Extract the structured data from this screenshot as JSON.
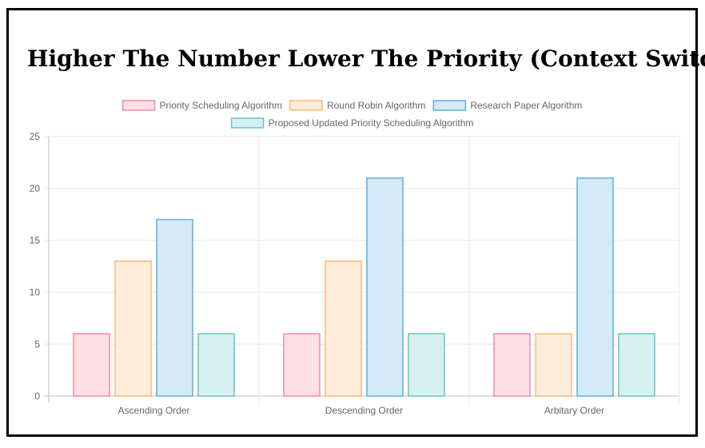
{
  "page": {
    "title": "Higher The Number Lower The Priority (Context Switch)"
  },
  "chart_data": {
    "type": "bar",
    "title": "Higher The Number Lower The Priority (Context Switch)",
    "categories": [
      "Ascending Order",
      "Descending Order",
      "Arbitary Order"
    ],
    "series": [
      {
        "name": "Priority Scheduling Algorithm",
        "values": [
          6,
          6,
          6
        ],
        "fill": "#ffdfe6",
        "stroke": "#f08aa1"
      },
      {
        "name": "Round Robin Algorithm",
        "values": [
          13,
          13,
          6
        ],
        "fill": "#ffecd9",
        "stroke": "#f6bb7b"
      },
      {
        "name": "Research Paper Algorithm",
        "values": [
          17,
          21,
          21
        ],
        "fill": "#d5eaf8",
        "stroke": "#5eaedc"
      },
      {
        "name": "Proposed Updated Priority Scheduling Algorithm",
        "values": [
          6,
          6,
          6
        ],
        "fill": "#d6f0f0",
        "stroke": "#6cc3c3"
      }
    ],
    "ylim": [
      0,
      25
    ],
    "yticks": [
      0,
      5,
      10,
      15,
      20,
      25
    ],
    "grid": true,
    "legend": "top"
  }
}
